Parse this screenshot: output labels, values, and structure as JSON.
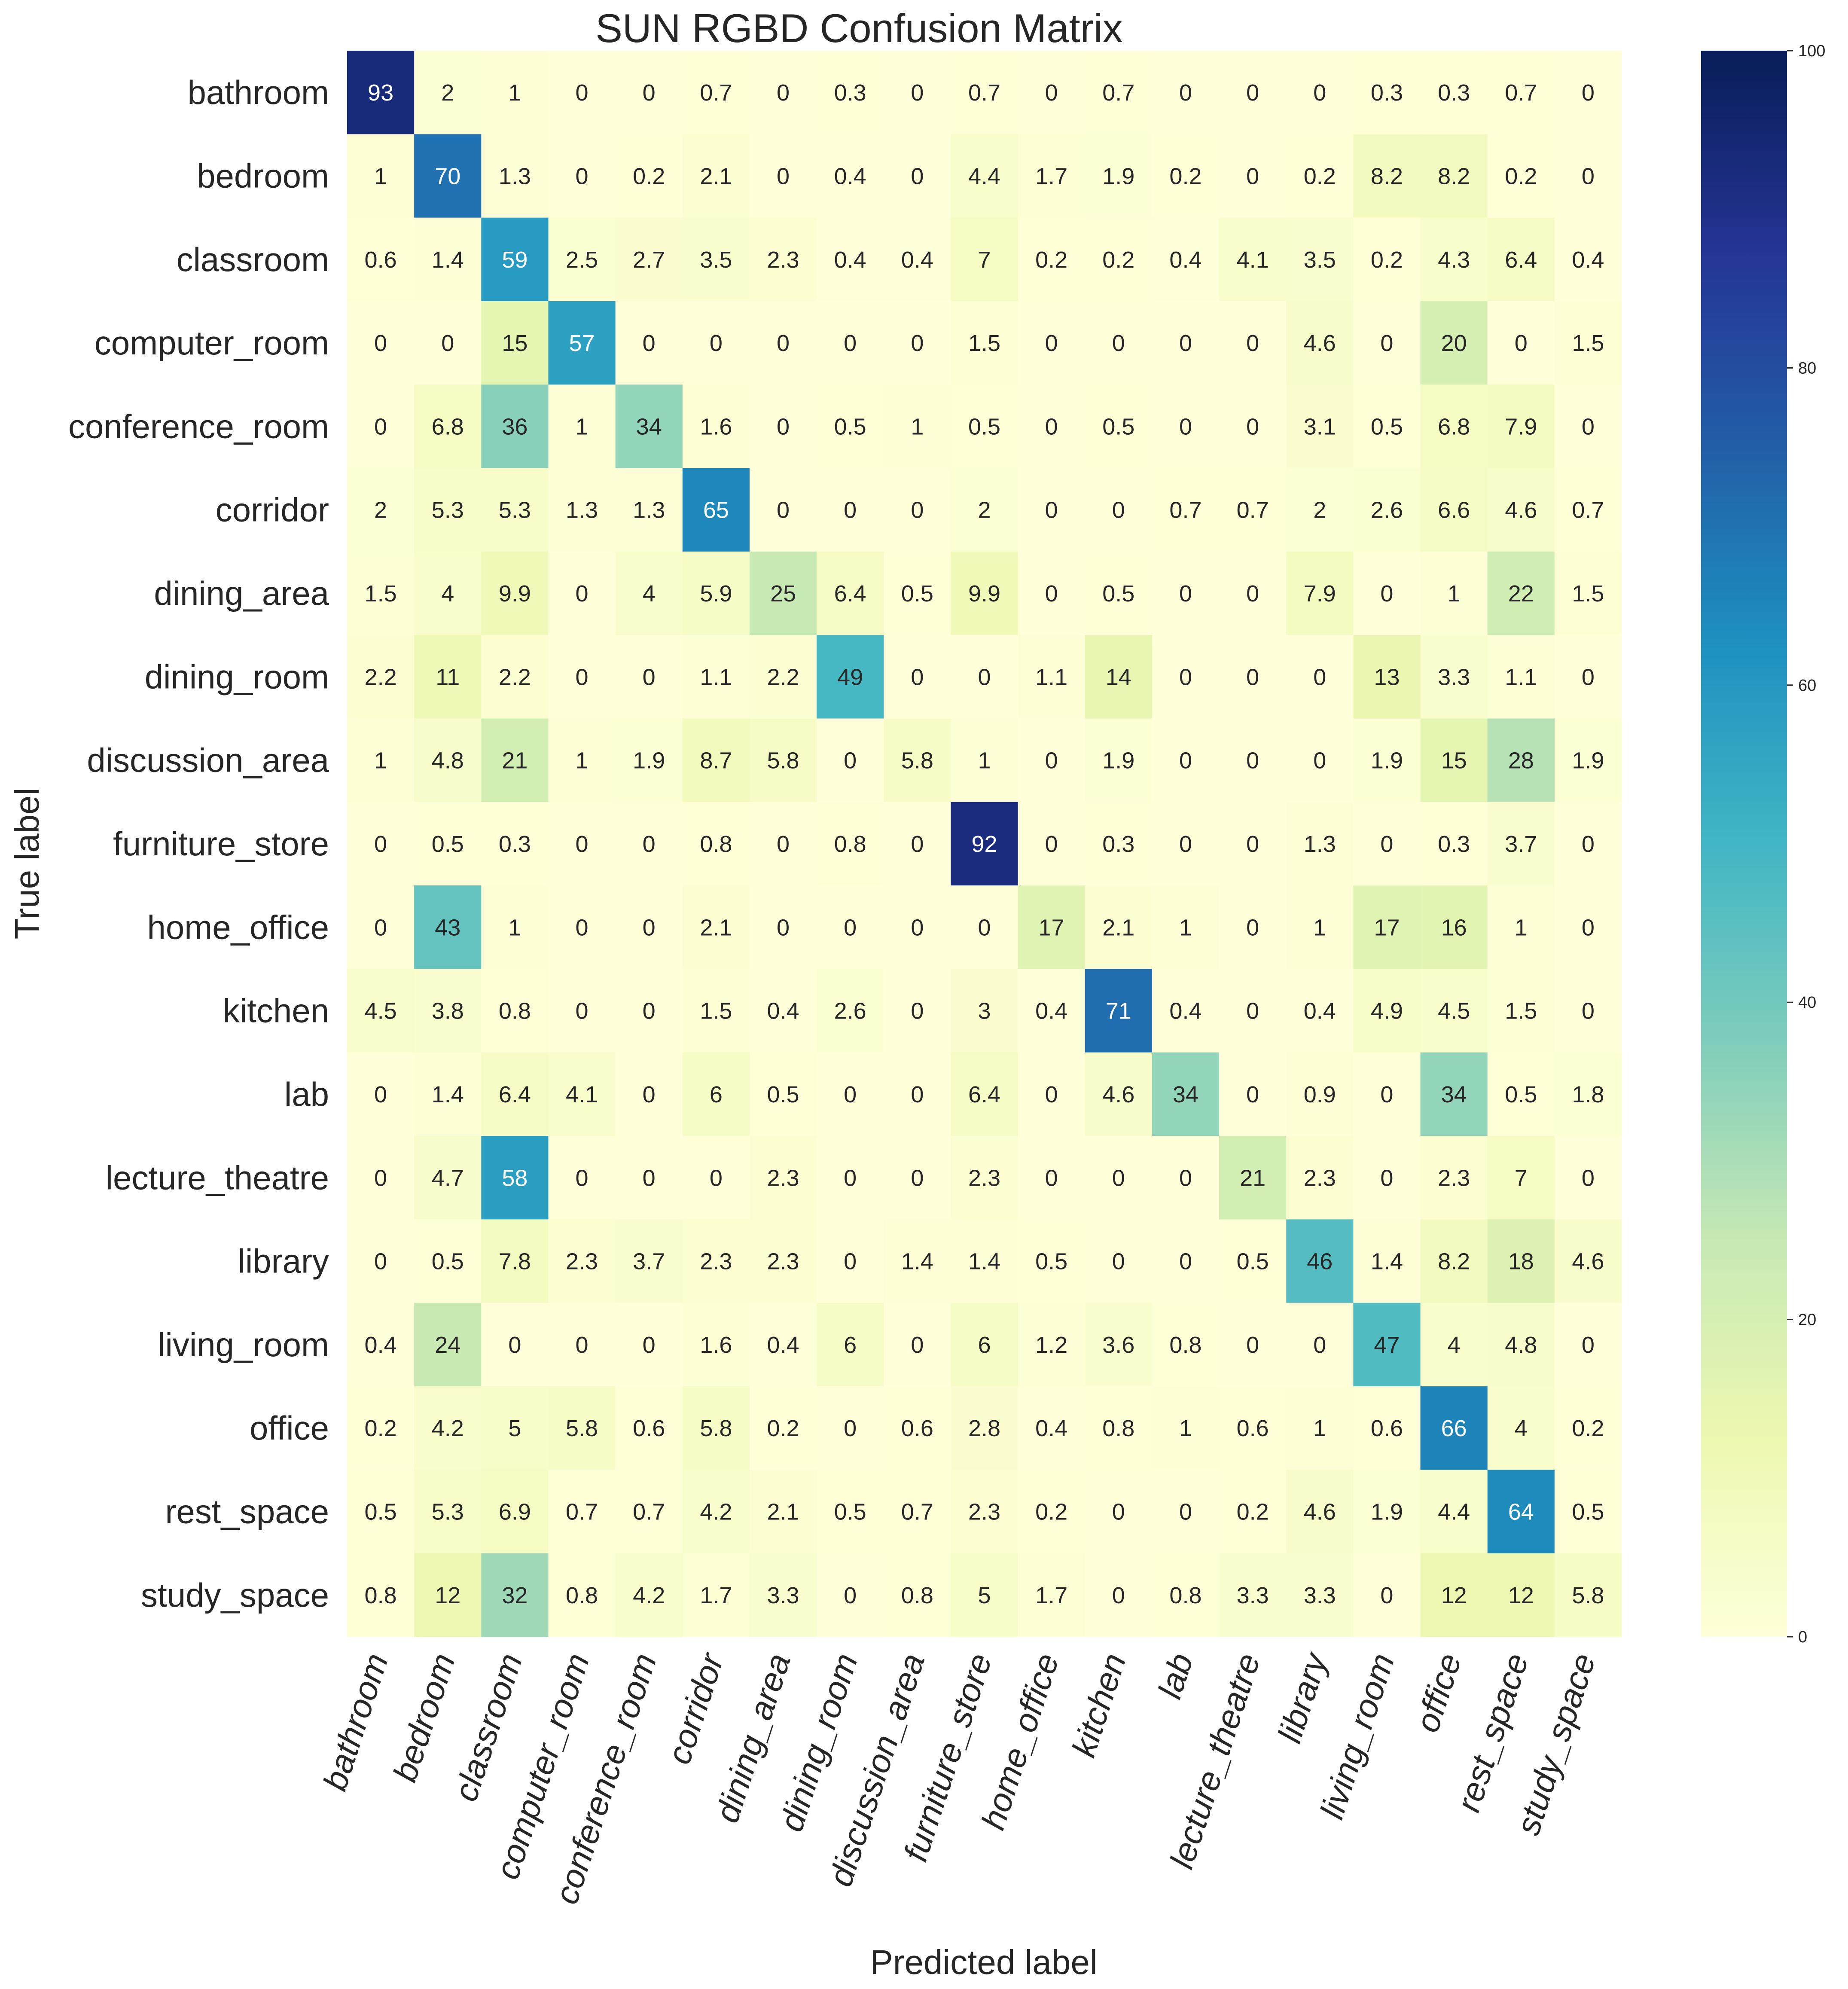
{
  "chart_data": {
    "type": "heatmap",
    "title": "SUN RGBD Confusion Matrix",
    "xlabel": "Predicted label",
    "ylabel": "True label",
    "labels": [
      "bathroom",
      "bedroom",
      "classroom",
      "computer_room",
      "conference_room",
      "corridor",
      "dining_area",
      "dining_room",
      "discussion_area",
      "furniture_store",
      "home_office",
      "kitchen",
      "lab",
      "lecture_theatre",
      "library",
      "living_room",
      "office",
      "rest_space",
      "study_space"
    ],
    "matrix": [
      [
        "93",
        "2",
        "1",
        "0",
        "0",
        "0.7",
        "0",
        "0.3",
        "0",
        "0.7",
        "0",
        "0.7",
        "0",
        "0",
        "0",
        "0.3",
        "0.3",
        "0.7",
        "0"
      ],
      [
        "1",
        "70",
        "1.3",
        "0",
        "0.2",
        "2.1",
        "0",
        "0.4",
        "0",
        "4.4",
        "1.7",
        "1.9",
        "0.2",
        "0",
        "0.2",
        "8.2",
        "8.2",
        "0.2",
        "0"
      ],
      [
        "0.6",
        "1.4",
        "59",
        "2.5",
        "2.7",
        "3.5",
        "2.3",
        "0.4",
        "0.4",
        "7",
        "0.2",
        "0.2",
        "0.4",
        "4.1",
        "3.5",
        "0.2",
        "4.3",
        "6.4",
        "0.4"
      ],
      [
        "0",
        "0",
        "15",
        "57",
        "0",
        "0",
        "0",
        "0",
        "0",
        "1.5",
        "0",
        "0",
        "0",
        "0",
        "4.6",
        "0",
        "20",
        "0",
        "1.5"
      ],
      [
        "0",
        "6.8",
        "36",
        "1",
        "34",
        "1.6",
        "0",
        "0.5",
        "1",
        "0.5",
        "0",
        "0.5",
        "0",
        "0",
        "3.1",
        "0.5",
        "6.8",
        "7.9",
        "0"
      ],
      [
        "2",
        "5.3",
        "5.3",
        "1.3",
        "1.3",
        "65",
        "0",
        "0",
        "0",
        "2",
        "0",
        "0",
        "0.7",
        "0.7",
        "2",
        "2.6",
        "6.6",
        "4.6",
        "0.7"
      ],
      [
        "1.5",
        "4",
        "9.9",
        "0",
        "4",
        "5.9",
        "25",
        "6.4",
        "0.5",
        "9.9",
        "0",
        "0.5",
        "0",
        "0",
        "7.9",
        "0",
        "1",
        "22",
        "1.5"
      ],
      [
        "2.2",
        "11",
        "2.2",
        "0",
        "0",
        "1.1",
        "2.2",
        "49",
        "0",
        "0",
        "1.1",
        "14",
        "0",
        "0",
        "0",
        "13",
        "3.3",
        "1.1",
        "0"
      ],
      [
        "1",
        "4.8",
        "21",
        "1",
        "1.9",
        "8.7",
        "5.8",
        "0",
        "5.8",
        "1",
        "0",
        "1.9",
        "0",
        "0",
        "0",
        "1.9",
        "15",
        "28",
        "1.9"
      ],
      [
        "0",
        "0.5",
        "0.3",
        "0",
        "0",
        "0.8",
        "0",
        "0.8",
        "0",
        "92",
        "0",
        "0.3",
        "0",
        "0",
        "1.3",
        "0",
        "0.3",
        "3.7",
        "0"
      ],
      [
        "0",
        "43",
        "1",
        "0",
        "0",
        "2.1",
        "0",
        "0",
        "0",
        "0",
        "17",
        "2.1",
        "1",
        "0",
        "1",
        "17",
        "16",
        "1",
        "0"
      ],
      [
        "4.5",
        "3.8",
        "0.8",
        "0",
        "0",
        "1.5",
        "0.4",
        "2.6",
        "0",
        "3",
        "0.4",
        "71",
        "0.4",
        "0",
        "0.4",
        "4.9",
        "4.5",
        "1.5",
        "0"
      ],
      [
        "0",
        "1.4",
        "6.4",
        "4.1",
        "0",
        "6",
        "0.5",
        "0",
        "0",
        "6.4",
        "0",
        "4.6",
        "34",
        "0",
        "0.9",
        "0",
        "34",
        "0.5",
        "1.8"
      ],
      [
        "0",
        "4.7",
        "58",
        "0",
        "0",
        "0",
        "2.3",
        "0",
        "0",
        "2.3",
        "0",
        "0",
        "0",
        "21",
        "2.3",
        "0",
        "2.3",
        "7",
        "0"
      ],
      [
        "0",
        "0.5",
        "7.8",
        "2.3",
        "3.7",
        "2.3",
        "2.3",
        "0",
        "1.4",
        "1.4",
        "0.5",
        "0",
        "0",
        "0.5",
        "46",
        "1.4",
        "8.2",
        "18",
        "4.6"
      ],
      [
        "0.4",
        "24",
        "0",
        "0",
        "0",
        "1.6",
        "0.4",
        "6",
        "0",
        "6",
        "1.2",
        "3.6",
        "0.8",
        "0",
        "0",
        "47",
        "4",
        "4.8",
        "0"
      ],
      [
        "0.2",
        "4.2",
        "5",
        "5.8",
        "0.6",
        "5.8",
        "0.2",
        "0",
        "0.6",
        "2.8",
        "0.4",
        "0.8",
        "1",
        "0.6",
        "1",
        "0.6",
        "66",
        "4",
        "0.2"
      ],
      [
        "0.5",
        "5.3",
        "6.9",
        "0.7",
        "0.7",
        "4.2",
        "2.1",
        "0.5",
        "0.7",
        "2.3",
        "0.2",
        "0",
        "0",
        "0.2",
        "4.6",
        "1.9",
        "4.4",
        "64",
        "0.5"
      ],
      [
        "0.8",
        "12",
        "32",
        "0.8",
        "4.2",
        "1.7",
        "3.3",
        "0",
        "0.8",
        "5",
        "1.7",
        "0",
        "0.8",
        "3.3",
        "3.3",
        "0",
        "12",
        "12",
        "5.8"
      ]
    ],
    "colorbar": {
      "range": [
        0,
        100
      ],
      "ticks": [
        "0",
        "20",
        "40",
        "60",
        "80",
        "100"
      ],
      "colormap": "YlGnBu",
      "colors": [
        "#ffffd9",
        "#edf8b1",
        "#c7e9b4",
        "#7fcdbb",
        "#41b6c4",
        "#1d91c0",
        "#225ea8",
        "#253494",
        "#081d58"
      ]
    }
  }
}
